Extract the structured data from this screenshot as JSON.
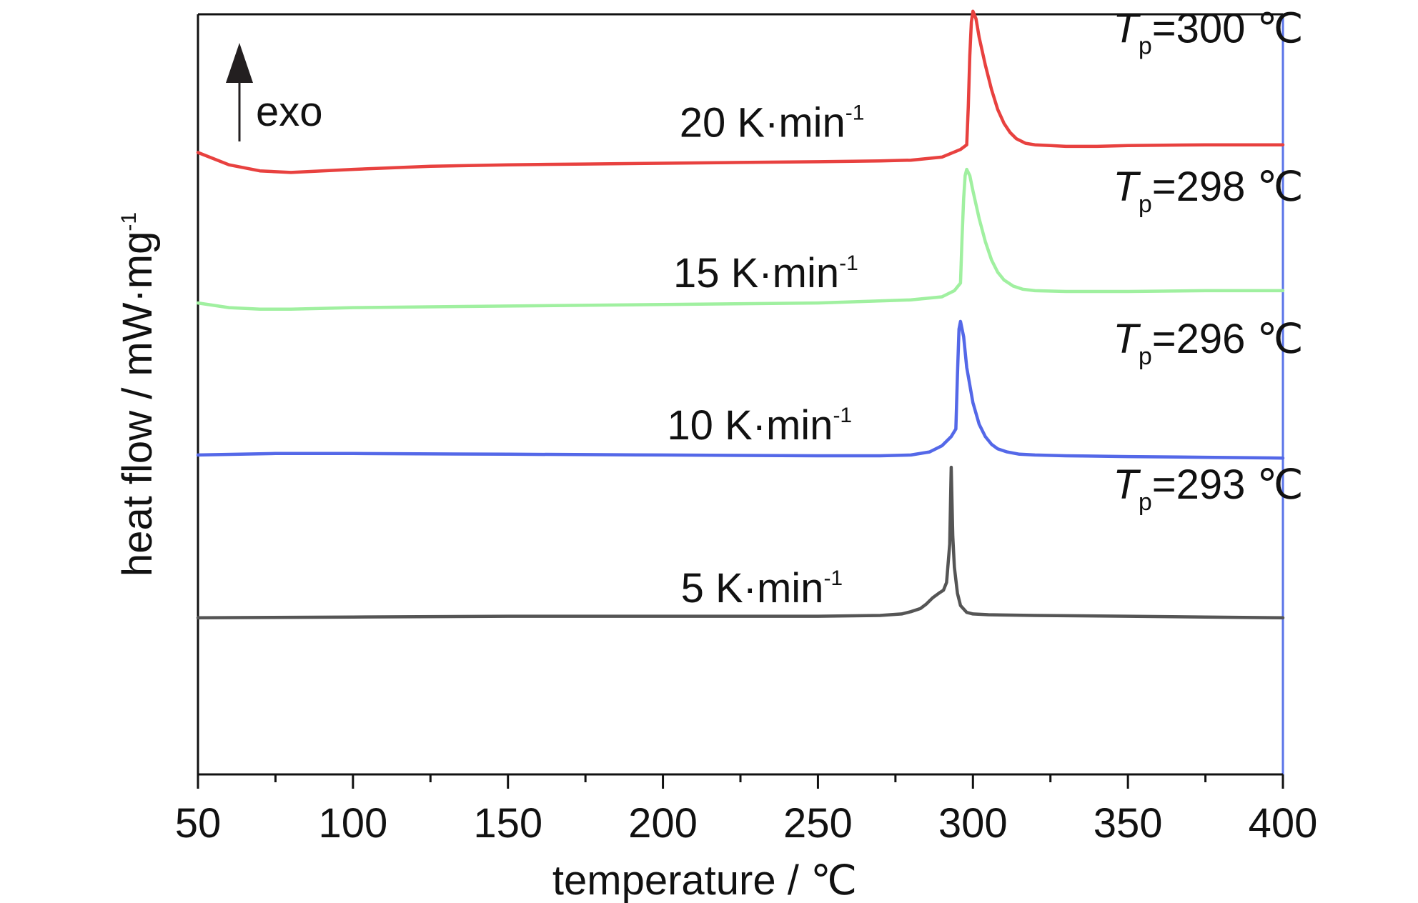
{
  "chart_data": {
    "type": "line",
    "title": "",
    "xlabel": "temperature / ℃",
    "ylabel_main": "heat flow / mW·mg",
    "ylabel_sup": "-1",
    "xlim": [
      50,
      400
    ],
    "ylim": [
      -0.2,
      4.75
    ],
    "xticks": [
      50,
      100,
      150,
      200,
      250,
      300,
      350,
      400
    ],
    "yticks_shown": false,
    "legend": "inline labels",
    "exo_indicator": "exo",
    "series": [
      {
        "name": "20 K·min-1",
        "rate_main": "20 K·min",
        "rate_sup": "-1",
        "tp_symbol": "T",
        "tp_sub": "p",
        "tp_value": "=300 ℃",
        "color": "#e8413f",
        "x": [
          50,
          60,
          70,
          80,
          90,
          100,
          125,
          150,
          175,
          200,
          225,
          250,
          270,
          280,
          290,
          296,
          298,
          298.5,
          299,
          299.5,
          300,
          301,
          302,
          304,
          306,
          308,
          310,
          312,
          314,
          317,
          320,
          325,
          330,
          340,
          350,
          375,
          400
        ],
        "y": [
          3.85,
          3.77,
          3.73,
          3.72,
          3.73,
          3.74,
          3.76,
          3.77,
          3.775,
          3.78,
          3.785,
          3.79,
          3.795,
          3.8,
          3.82,
          3.87,
          3.9,
          4.15,
          4.48,
          4.7,
          4.77,
          4.72,
          4.6,
          4.42,
          4.26,
          4.13,
          4.04,
          3.98,
          3.94,
          3.91,
          3.9,
          3.895,
          3.89,
          3.89,
          3.895,
          3.9,
          3.9
        ]
      },
      {
        "name": "15 K·min-1",
        "rate_main": "15 K·min",
        "rate_sup": "-1",
        "tp_symbol": "T",
        "tp_sub": "p",
        "tp_value": "=298 ℃",
        "color": "#a0f0a0",
        "x": [
          50,
          60,
          70,
          80,
          100,
          150,
          200,
          250,
          280,
          290,
          294,
          296,
          296.5,
          297,
          297.5,
          298,
          299,
          300,
          302,
          304,
          306,
          308,
          310,
          313,
          316,
          320,
          330,
          350,
          375,
          400
        ],
        "y": [
          2.87,
          2.84,
          2.83,
          2.83,
          2.84,
          2.85,
          2.86,
          2.87,
          2.89,
          2.91,
          2.95,
          3.0,
          3.3,
          3.55,
          3.7,
          3.74,
          3.7,
          3.6,
          3.42,
          3.27,
          3.15,
          3.07,
          3.02,
          2.98,
          2.96,
          2.95,
          2.945,
          2.945,
          2.95,
          2.95
        ]
      },
      {
        "name": "10 K·min-1",
        "rate_main": "10 K·min",
        "rate_sup": "-1",
        "tp_symbol": "T",
        "tp_sub": "p",
        "tp_value": "=296 ℃",
        "color": "#5468e8",
        "x": [
          50,
          75,
          100,
          150,
          200,
          250,
          270,
          280,
          286,
          290,
          293,
          294.5,
          295,
          295.5,
          296,
          297,
          298,
          300,
          302,
          304,
          306,
          308,
          311,
          315,
          320,
          330,
          350,
          375,
          400
        ],
        "y": [
          1.88,
          1.89,
          1.89,
          1.885,
          1.88,
          1.875,
          1.875,
          1.88,
          1.9,
          1.94,
          2.0,
          2.05,
          2.4,
          2.7,
          2.75,
          2.65,
          2.45,
          2.22,
          2.08,
          2.0,
          1.95,
          1.92,
          1.9,
          1.885,
          1.88,
          1.875,
          1.87,
          1.865,
          1.86
        ]
      },
      {
        "name": "5 K·min-1",
        "rate_main": "5 K·min",
        "rate_sup": "-1",
        "tp_symbol": "T",
        "tp_sub": "p",
        "tp_value": "=293 ℃",
        "color": "#555555",
        "x": [
          50,
          100,
          150,
          200,
          250,
          270,
          277,
          280,
          283,
          285,
          287,
          289,
          290.5,
          291.5,
          292.5,
          293,
          293.5,
          294,
          295,
          296,
          298,
          300,
          305,
          320,
          350,
          375,
          400
        ],
        "y": [
          0.82,
          0.825,
          0.83,
          0.83,
          0.83,
          0.835,
          0.845,
          0.86,
          0.88,
          0.91,
          0.95,
          0.98,
          1.0,
          1.05,
          1.3,
          1.8,
          1.35,
          1.15,
          0.98,
          0.9,
          0.855,
          0.845,
          0.84,
          0.835,
          0.83,
          0.825,
          0.82
        ]
      }
    ]
  }
}
